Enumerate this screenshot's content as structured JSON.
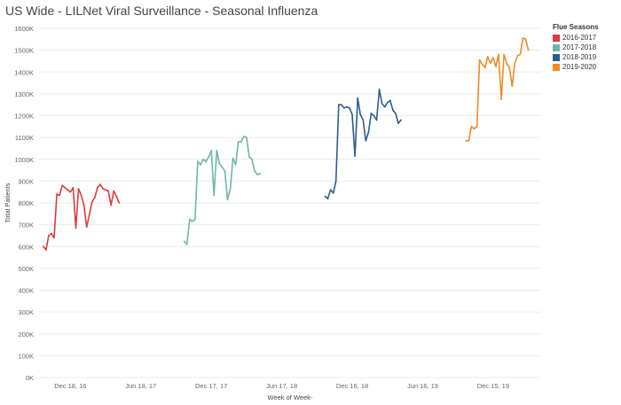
{
  "title": "US Wide - LILNet Viral Surveillance - Seasonal Influenza",
  "legend": {
    "title": "Flue Seasons",
    "items": [
      {
        "label": "2016-2017",
        "color": "#e03a3e"
      },
      {
        "label": "2017-2018",
        "color": "#6fb6a9"
      },
      {
        "label": "2018-2019",
        "color": "#2d5d8e"
      },
      {
        "label": "2019-2020",
        "color": "#f08a24"
      }
    ]
  },
  "chart_data": {
    "type": "line",
    "title": "US Wide - LILNet Viral Surveillance - Seasonal Influenza",
    "xlabel": "Week of Week-",
    "ylabel": "Total Patients",
    "x_tick_labels": [
      "Dec 18, 16",
      "Jun 18, 17",
      "Dec 17, 17",
      "Jun 17, 18",
      "Dec 16, 18",
      "Jun 16, 19",
      "Dec 15, 19"
    ],
    "x_ticks": [
      "2016-12-18",
      "2017-06-18",
      "2017-12-17",
      "2018-06-17",
      "2018-12-16",
      "2019-06-16",
      "2019-12-15"
    ],
    "xlim": [
      "2016-09-28",
      "2020-04-17"
    ],
    "y_tick_labels": [
      "0K",
      "100K",
      "200K",
      "300K",
      "400K",
      "500K",
      "600K",
      "700K",
      "800K",
      "900K",
      "1000K",
      "1100K",
      "1200K",
      "1300K",
      "1400K",
      "1500K",
      "1600K"
    ],
    "ylim": [
      0,
      1600000
    ],
    "grid": "horizontal",
    "legend_position": "top-right",
    "series": [
      {
        "name": "2016-2017",
        "color": "#e03a3e",
        "x": [
          "2016-10-09",
          "2016-10-16",
          "2016-10-23",
          "2016-10-30",
          "2016-11-06",
          "2016-11-13",
          "2016-11-20",
          "2016-11-27",
          "2016-12-04",
          "2016-12-11",
          "2016-12-18",
          "2016-12-25",
          "2017-01-01",
          "2017-01-08",
          "2017-01-15",
          "2017-01-22",
          "2017-01-29",
          "2017-02-05",
          "2017-02-12",
          "2017-02-19",
          "2017-02-26",
          "2017-03-05",
          "2017-03-12",
          "2017-03-19",
          "2017-03-26",
          "2017-04-02",
          "2017-04-09",
          "2017-04-16",
          "2017-04-23"
        ],
        "y": [
          600000,
          585000,
          650000,
          660000,
          640000,
          840000,
          835000,
          880000,
          870000,
          860000,
          850000,
          870000,
          685000,
          865000,
          835000,
          790000,
          690000,
          745000,
          805000,
          825000,
          870000,
          885000,
          865000,
          860000,
          855000,
          790000,
          855000,
          830000,
          800000
        ]
      },
      {
        "name": "2017-2018",
        "color": "#6fb6a9",
        "x": [
          "2017-10-08",
          "2017-10-15",
          "2017-10-22",
          "2017-10-29",
          "2017-11-05",
          "2017-11-12",
          "2017-11-19",
          "2017-11-26",
          "2017-12-03",
          "2017-12-10",
          "2017-12-17",
          "2017-12-24",
          "2017-12-31",
          "2018-01-07",
          "2018-01-14",
          "2018-01-21",
          "2018-01-28",
          "2018-02-04",
          "2018-02-11",
          "2018-02-18",
          "2018-02-25",
          "2018-03-04",
          "2018-03-11",
          "2018-03-18",
          "2018-03-25",
          "2018-04-01",
          "2018-04-08",
          "2018-04-15",
          "2018-04-22"
        ],
        "y": [
          625000,
          610000,
          725000,
          715000,
          725000,
          990000,
          975000,
          1000000,
          990000,
          1010000,
          1040000,
          835000,
          1040000,
          980000,
          965000,
          945000,
          815000,
          865000,
          1005000,
          975000,
          1080000,
          1080000,
          1105000,
          1100000,
          1010000,
          1000000,
          945000,
          930000,
          935000
        ]
      },
      {
        "name": "2018-2019",
        "color": "#2d5d8e",
        "x": [
          "2018-10-07",
          "2018-10-14",
          "2018-10-21",
          "2018-10-28",
          "2018-11-04",
          "2018-11-11",
          "2018-11-18",
          "2018-11-25",
          "2018-12-02",
          "2018-12-09",
          "2018-12-16",
          "2018-12-23",
          "2018-12-30",
          "2019-01-06",
          "2019-01-13",
          "2019-01-20",
          "2019-01-27",
          "2019-02-03",
          "2019-02-10",
          "2019-02-17",
          "2019-02-24",
          "2019-03-03",
          "2019-03-10",
          "2019-03-17",
          "2019-03-24",
          "2019-03-31",
          "2019-04-07",
          "2019-04-14",
          "2019-04-21"
        ],
        "y": [
          830000,
          820000,
          860000,
          845000,
          900000,
          1250000,
          1250000,
          1235000,
          1240000,
          1235000,
          1205000,
          1015000,
          1280000,
          1205000,
          1180000,
          1085000,
          1125000,
          1210000,
          1200000,
          1180000,
          1320000,
          1255000,
          1240000,
          1260000,
          1270000,
          1225000,
          1210000,
          1165000,
          1180000
        ]
      },
      {
        "name": "2019-2020",
        "color": "#f08a24",
        "x": [
          "2019-10-06",
          "2019-10-13",
          "2019-10-20",
          "2019-10-27",
          "2019-11-03",
          "2019-11-10",
          "2019-11-17",
          "2019-11-24",
          "2019-12-01",
          "2019-12-08",
          "2019-12-15",
          "2019-12-22",
          "2019-12-29",
          "2020-01-05",
          "2020-01-12",
          "2020-01-19",
          "2020-01-26",
          "2020-02-02",
          "2020-02-09",
          "2020-02-16",
          "2020-02-23",
          "2020-03-01",
          "2020-03-08",
          "2020-03-15"
        ],
        "y": [
          1085000,
          1085000,
          1150000,
          1140000,
          1150000,
          1455000,
          1435000,
          1420000,
          1470000,
          1440000,
          1465000,
          1425000,
          1480000,
          1275000,
          1480000,
          1440000,
          1420000,
          1335000,
          1440000,
          1475000,
          1480000,
          1555000,
          1550000,
          1500000
        ]
      }
    ]
  }
}
